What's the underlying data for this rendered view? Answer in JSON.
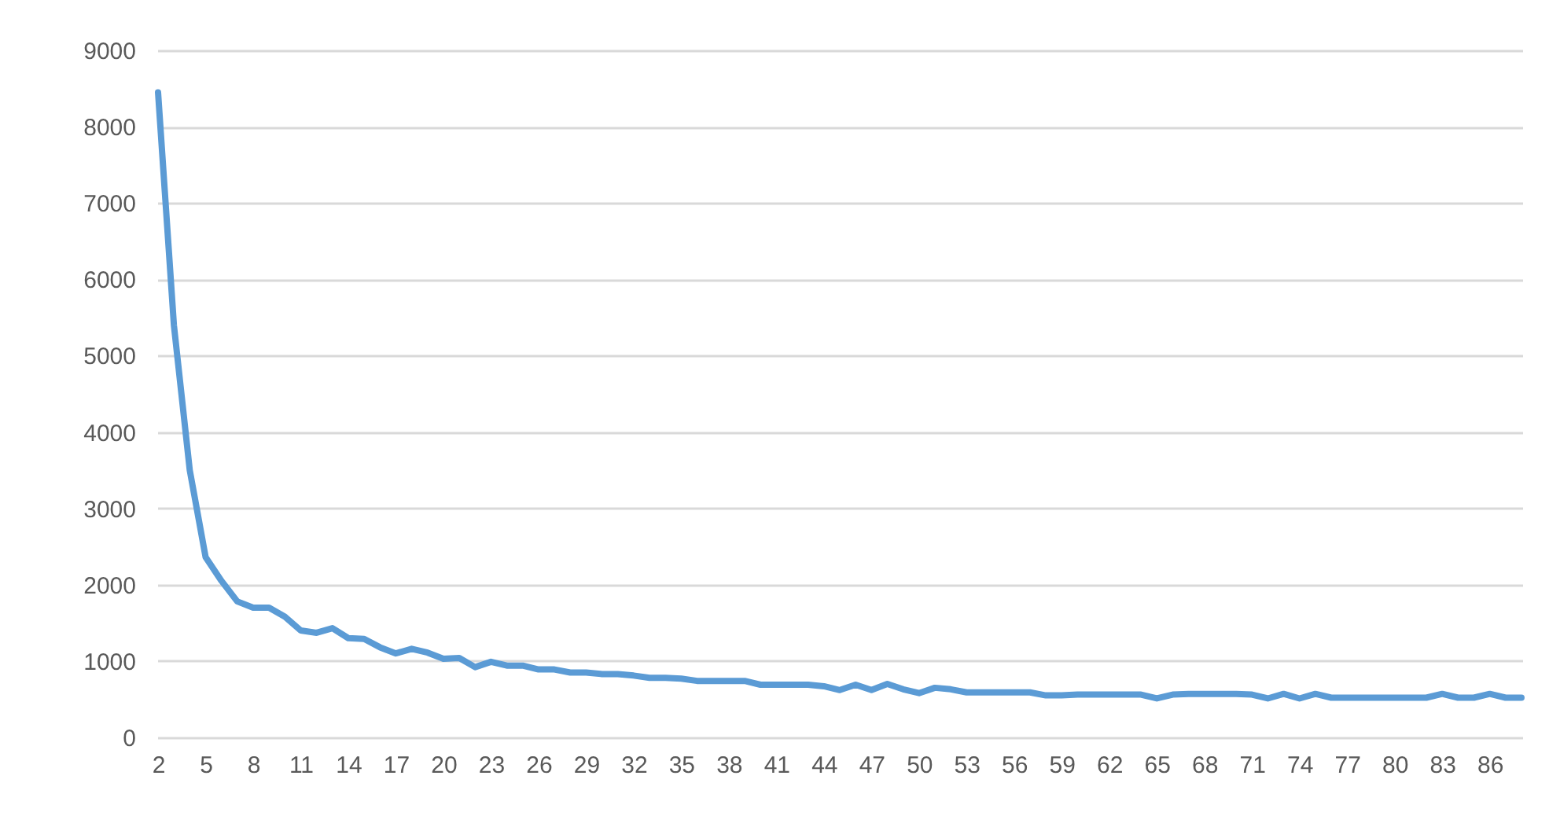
{
  "chart_data": {
    "type": "line",
    "categories": [
      "2",
      null,
      null,
      "5",
      null,
      null,
      "8",
      null,
      null,
      "11",
      null,
      null,
      "14",
      null,
      null,
      "17",
      null,
      null,
      "20",
      null,
      null,
      "23",
      null,
      null,
      "26",
      null,
      null,
      "29",
      null,
      null,
      "32",
      null,
      null,
      "35",
      null,
      null,
      "38",
      null,
      null,
      "41",
      null,
      null,
      "44",
      null,
      null,
      "47",
      null,
      null,
      "50",
      null,
      null,
      "53",
      null,
      null,
      "56",
      null,
      null,
      "59",
      null,
      null,
      "62",
      null,
      null,
      "65",
      null,
      null,
      "68",
      null,
      null,
      "71",
      null,
      null,
      "74",
      null,
      null,
      "77",
      null,
      null,
      "80",
      null,
      null,
      "83",
      null,
      null,
      "86",
      null,
      null
    ],
    "series": [
      {
        "color": "#5b9bd5",
        "values": [
          8450,
          5400,
          3500,
          2360,
          2050,
          1780,
          1700,
          1700,
          1580,
          1400,
          1370,
          1430,
          1300,
          1290,
          1180,
          1100,
          1160,
          1110,
          1030,
          1040,
          920,
          990,
          940,
          940,
          890,
          890,
          850,
          850,
          830,
          830,
          810,
          780,
          780,
          770,
          740,
          740,
          740,
          740,
          690,
          690,
          690,
          690,
          670,
          620,
          690,
          620,
          700,
          630,
          580,
          650,
          630,
          590,
          590,
          590,
          590,
          590,
          550,
          550,
          560,
          560,
          560,
          560,
          560,
          510,
          560,
          570,
          570,
          570,
          570,
          560,
          510,
          570,
          510,
          570,
          520,
          520,
          520,
          520,
          520,
          520,
          520,
          570,
          520,
          520,
          570,
          520,
          520
        ]
      }
    ],
    "ylim": [
      0,
      9000
    ],
    "yticks": [
      0,
      1000,
      2000,
      3000,
      4000,
      5000,
      6000,
      7000,
      8000,
      9000
    ],
    "grid": "y",
    "line_style": "solid",
    "marker": "none",
    "legend": false
  }
}
